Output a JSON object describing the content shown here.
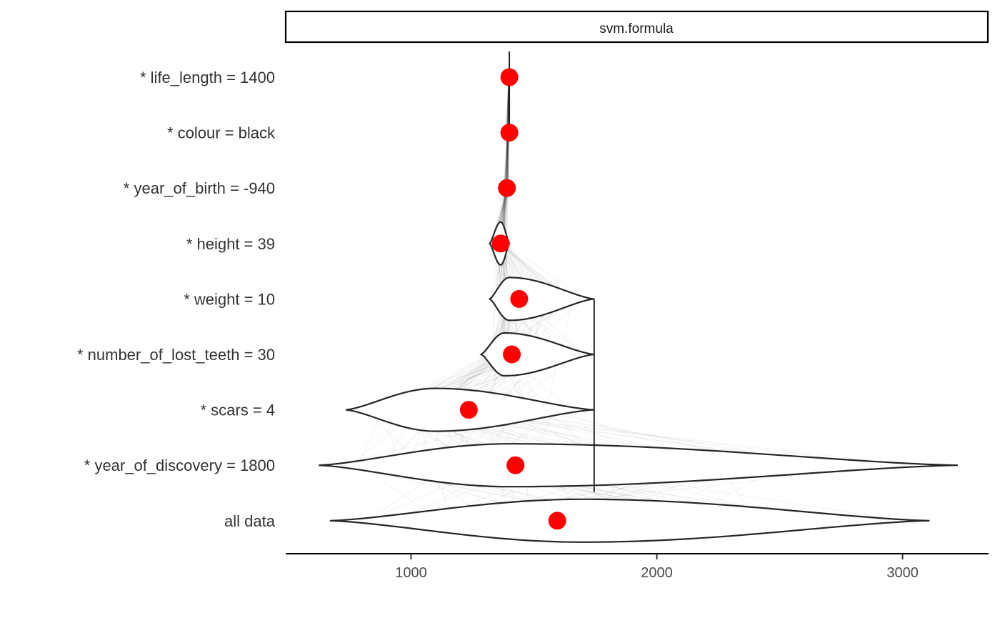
{
  "chart_data": {
    "type": "violin",
    "facet": "svm.formula",
    "x_ticks": [
      1000,
      2000,
      3000
    ],
    "xlim": [
      490,
      3350
    ],
    "rows": [
      {
        "label": "* life_length = 1400",
        "point": 1400,
        "range": [
          1395,
          1400
        ],
        "median": 1398
      },
      {
        "label": "* colour = black",
        "point": 1400,
        "range": [
          1385,
          1402
        ],
        "median": 1395
      },
      {
        "label": "* year_of_birth = -940",
        "point": 1390,
        "range": [
          1370,
          1400
        ],
        "median": 1390
      },
      {
        "label": "* height = 39",
        "point": 1365,
        "range": [
          1320,
          1400
        ],
        "median": 1365
      },
      {
        "label": "* weight = 10",
        "point": 1440,
        "range": [
          1320,
          1745
        ],
        "median": 1400
      },
      {
        "label": "* number_of_lost_teeth = 30",
        "point": 1410,
        "range": [
          1285,
          1745
        ],
        "median": 1380
      },
      {
        "label": "* scars = 4",
        "point": 1235,
        "range": [
          735,
          1745
        ],
        "median": 1100
      },
      {
        "label": "* year_of_discovery = 1800",
        "point": 1425,
        "range": [
          625,
          3225
        ],
        "median": 1400
      },
      {
        "label": "all data",
        "point": 1595,
        "range": [
          670,
          3110
        ],
        "median": 1700
      }
    ],
    "point_color": "#ff0000",
    "reference_line": 1745
  }
}
